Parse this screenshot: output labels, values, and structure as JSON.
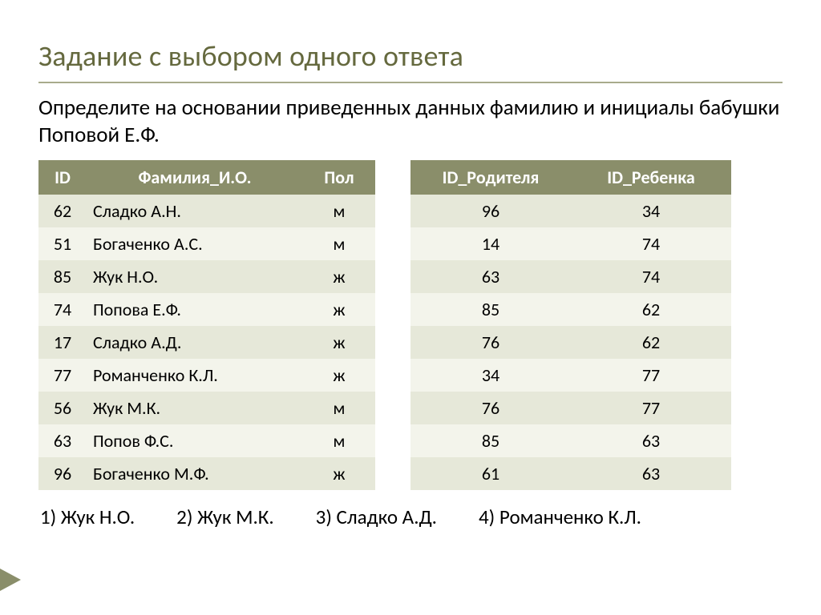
{
  "title": "Задание с выбором одного ответа",
  "question": "Определите на основании приведенных данных фамилию и инициалы бабушки Поповой Е.Ф.",
  "persons": {
    "columns": [
      "ID",
      "Фамилия_И.О.",
      "Пол"
    ],
    "rows": [
      [
        "62",
        "Сладко А.Н.",
        "м"
      ],
      [
        "51",
        "Богаченко А.С.",
        "м"
      ],
      [
        "85",
        "Жук Н.О.",
        "ж"
      ],
      [
        "74",
        "Попова Е.Ф.",
        "ж"
      ],
      [
        "17",
        "Сладко А.Д.",
        "ж"
      ],
      [
        "77",
        "Романченко К.Л.",
        "ж"
      ],
      [
        "56",
        "Жук М.К.",
        "м"
      ],
      [
        "63",
        "Попов Ф.С.",
        "м"
      ],
      [
        "96",
        "Богаченко М.Ф.",
        "ж"
      ]
    ]
  },
  "relations": {
    "columns": [
      "ID_Родителя",
      "ID_Ребенка"
    ],
    "rows": [
      [
        "96",
        "34"
      ],
      [
        "14",
        "74"
      ],
      [
        "63",
        "74"
      ],
      [
        "85",
        "62"
      ],
      [
        "76",
        "62"
      ],
      [
        "34",
        "77"
      ],
      [
        "76",
        "77"
      ],
      [
        "85",
        "63"
      ],
      [
        "61",
        "63"
      ]
    ]
  },
  "answers": [
    "1) Жук Н.О.",
    "2) Жук М.К.",
    "3) Сладко А.Д.",
    "4) Романченко К.Л."
  ],
  "colors": {
    "title": "#65693e",
    "header_bg": "#8a8e6a",
    "header_fg": "#ffffff",
    "row_odd": "#e6e8d9",
    "row_even": "#f3f4eb",
    "rule": "#a8ab8c",
    "text": "#000000",
    "marker": "#8a8e6a"
  }
}
